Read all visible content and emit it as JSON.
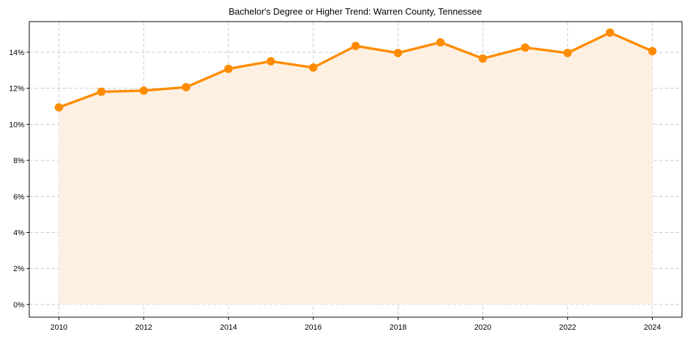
{
  "chart_data": {
    "type": "line",
    "title": "Bachelor's Degree or Higher Trend: Warren County, Tennessee",
    "xlabel": "",
    "ylabel": "",
    "x": [
      2010,
      2011,
      2012,
      2013,
      2014,
      2015,
      2016,
      2017,
      2018,
      2019,
      2020,
      2021,
      2022,
      2023,
      2024
    ],
    "series": [
      {
        "name": "Bachelor's Degree or Higher (%)",
        "values": [
          10.94,
          11.81,
          11.87,
          12.06,
          13.08,
          13.5,
          13.15,
          14.35,
          13.96,
          14.55,
          13.65,
          14.26,
          13.96,
          15.09,
          14.06
        ],
        "color": "#ff8c00",
        "fill": "#fdf0e2"
      }
    ],
    "xticks": [
      "2010",
      "2012",
      "2014",
      "2016",
      "2018",
      "2020",
      "2022",
      "2024"
    ],
    "yticks": [
      "0%",
      "2%",
      "4%",
      "6%",
      "8%",
      "10%",
      "12%",
      "14%"
    ],
    "ytick_values": [
      0,
      2,
      4,
      6,
      8,
      10,
      12,
      14
    ],
    "xlim": [
      2009.3,
      2024.7
    ],
    "ylim": [
      -0.7,
      15.7
    ],
    "grid": true,
    "legend": "none"
  }
}
